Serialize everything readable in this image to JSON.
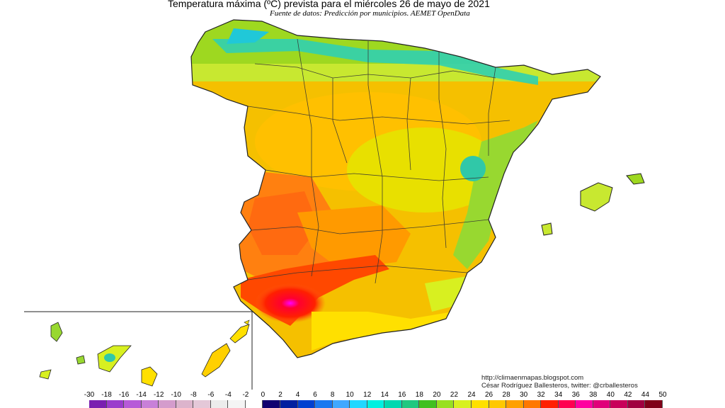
{
  "header": {
    "title": "Temperatura máxima (ºC) prevista para el miércoles 26 de mayo de 2021",
    "subtitle": "Fuente de datos: Predicción por municipios. AEMET OpenData"
  },
  "credits": {
    "url": "http://climaenmapas.blogspot.com",
    "author": "César Rodríguez Ballesteros, twitter: @crballesteros"
  },
  "legend": {
    "ticks": [
      "-30",
      "-18",
      "-16",
      "-14",
      "-12",
      "-10",
      "-8",
      "-6",
      "-4",
      "-2",
      "0",
      "2",
      "4",
      "6",
      "8",
      "10",
      "12",
      "14",
      "16",
      "18",
      "20",
      "22",
      "24",
      "26",
      "28",
      "30",
      "32",
      "34",
      "36",
      "38",
      "40",
      "42",
      "44",
      "50"
    ],
    "colors": [
      "#7a1fb0",
      "#9b3ccc",
      "#b75ad8",
      "#c880d8",
      "#d49ccc",
      "#dcb4cc",
      "#e4c8d8",
      "#ececec",
      "#f4f4f4",
      "#ffffff",
      "#100070",
      "#0020a0",
      "#0040d0",
      "#1a78f0",
      "#40a8ff",
      "#20d8ff",
      "#00f0e0",
      "#00d8b0",
      "#20c880",
      "#40c020",
      "#98e020",
      "#d8f020",
      "#ffe000",
      "#ffc800",
      "#ffa000",
      "#ff7800",
      "#ff2000",
      "#ff0050",
      "#ff00a0",
      "#e0007a",
      "#c8005a",
      "#a00040",
      "#800018"
    ]
  },
  "map": {
    "regions": [
      "peninsula",
      "balearic-islands",
      "canary-islands"
    ]
  }
}
